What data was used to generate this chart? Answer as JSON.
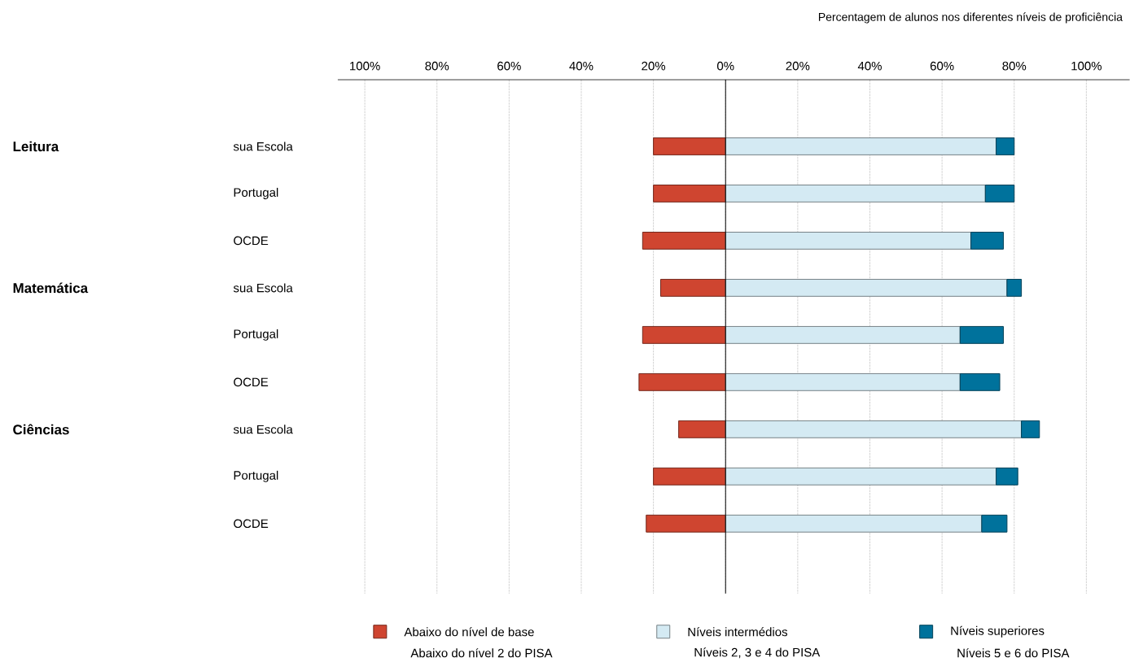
{
  "chart_data": {
    "type": "bar",
    "orientation": "horizontal",
    "stacked": true,
    "xlabel": "Percentagem de alunos nos diferentes níveis de proficiência",
    "categories": [
      "sua Escola",
      "Portugal",
      "OCDE",
      "sua Escola",
      "Portugal",
      "OCDE",
      "sua Escola",
      "Portugal",
      "OCDE"
    ],
    "series": [
      {
        "name": "Abaixo do nível de base",
        "color": "#cf4530",
        "values": [
          -20,
          -20,
          -23,
          -18,
          -23,
          -24,
          -13,
          -20,
          -22
        ]
      },
      {
        "name": "Níveis intermédios",
        "color": "#d4eaf3",
        "values": [
          75,
          72,
          68,
          78,
          65,
          65,
          82,
          75,
          71
        ]
      },
      {
        "name": "Níveis superiores",
        "color": "#00729c",
        "values": [
          5,
          8,
          9,
          4,
          12,
          11,
          5,
          6,
          7
        ]
      }
    ],
    "xlim": [
      -107.5,
      112
    ],
    "xticks": [
      {
        "value": -100,
        "label": "100%"
      },
      {
        "value": -80,
        "label": "80%"
      },
      {
        "value": -60,
        "label": "60%"
      },
      {
        "value": -40,
        "label": "40%"
      },
      {
        "value": -20,
        "label": "20%"
      },
      {
        "value": 0,
        "label": "0%"
      },
      {
        "value": 20,
        "label": "20%"
      },
      {
        "value": 40,
        "label": "40%"
      },
      {
        "value": 60,
        "label": "60%"
      },
      {
        "value": 80,
        "label": "80%"
      },
      {
        "value": 100,
        "label": "100%"
      }
    ],
    "ref_lines": [
      {
        "axis": "x",
        "value": 0
      }
    ],
    "grid": "x",
    "legend": "bottom",
    "annotations": [
      "Leitura",
      "Matemática",
      "Ciências",
      "Abaixo do nível 2 do PISA",
      "Níveis 2, 3 e 4 do PISA",
      "Níveis 5 e 6 do PISA"
    ]
  }
}
